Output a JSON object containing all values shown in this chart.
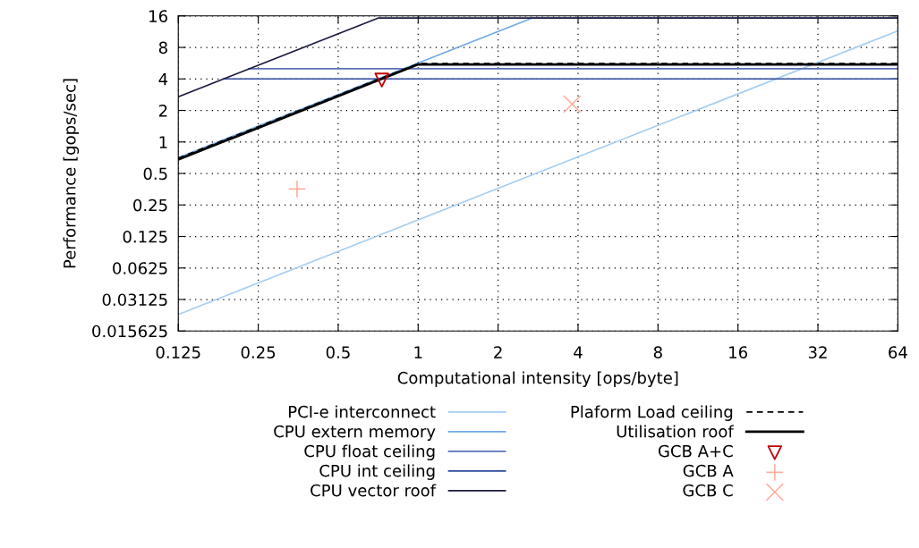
{
  "chart_data": {
    "type": "line",
    "xlabel": "Computational intensity [ops/byte]",
    "ylabel": "Performance [gops/sec]",
    "log": "xy",
    "grid": true,
    "legend": "bottom",
    "xlim": [
      0.125,
      64
    ],
    "xticks": [
      0.125,
      0.25,
      0.5,
      1,
      2,
      4,
      8,
      16,
      32,
      64
    ],
    "ylim": [
      0.015625,
      16
    ],
    "yticks": [
      0.015625,
      0.03125,
      0.0625,
      0.125,
      0.25,
      0.5,
      1,
      2,
      4,
      8,
      16
    ],
    "series": [
      {
        "name": "PCI-e interconnect",
        "color": "#a6cef0",
        "line_style": "solid",
        "x": [
          0.125,
          64
        ],
        "values": [
          0.0225,
          11.5
        ]
      },
      {
        "name": "CPU extern memory",
        "color": "#72a8e8",
        "line_style": "solid",
        "x": [
          0.125,
          2.7,
          64
        ],
        "values": [
          0.71,
          15.3,
          15.3
        ]
      },
      {
        "name": "CPU float ceiling",
        "color": "#5a72b8",
        "line_style": "solid",
        "x": [
          0.23,
          64
        ],
        "values": [
          5,
          5
        ]
      },
      {
        "name": "CPU int ceiling",
        "color": "#2e4a9e",
        "line_style": "solid",
        "x": [
          0.185,
          64
        ],
        "values": [
          4,
          4
        ]
      },
      {
        "name": "CPU vector roof",
        "color": "#1a1a40",
        "line_style": "solid",
        "x": [
          0.125,
          0.71,
          64
        ],
        "values": [
          2.7,
          15.3,
          15.3
        ]
      },
      {
        "name": "Plaform Load ceiling",
        "color": "#000000",
        "line_style": "dashed",
        "x": [
          0.125,
          1,
          64
        ],
        "values": [
          0.7,
          5.6,
          5.6
        ]
      },
      {
        "name": "Utilisation roof",
        "color": "#000000",
        "line_style": "solid",
        "x": [
          0.125,
          1,
          64
        ],
        "values": [
          0.68,
          5.5,
          5.5
        ]
      },
      {
        "name": "GCB A+C",
        "color": "#c00000",
        "type": "scatter",
        "marker": "triangle",
        "x": [
          0.73
        ],
        "values": [
          3.9
        ]
      },
      {
        "name": "GCB A",
        "color": "#ffb0a0",
        "type": "scatter",
        "marker": "plus",
        "x": [
          0.35
        ],
        "values": [
          0.355
        ]
      },
      {
        "name": "GCB C",
        "color": "#ffb0a0",
        "type": "scatter",
        "marker": "cross",
        "x": [
          3.8
        ],
        "values": [
          2.3
        ]
      }
    ]
  }
}
